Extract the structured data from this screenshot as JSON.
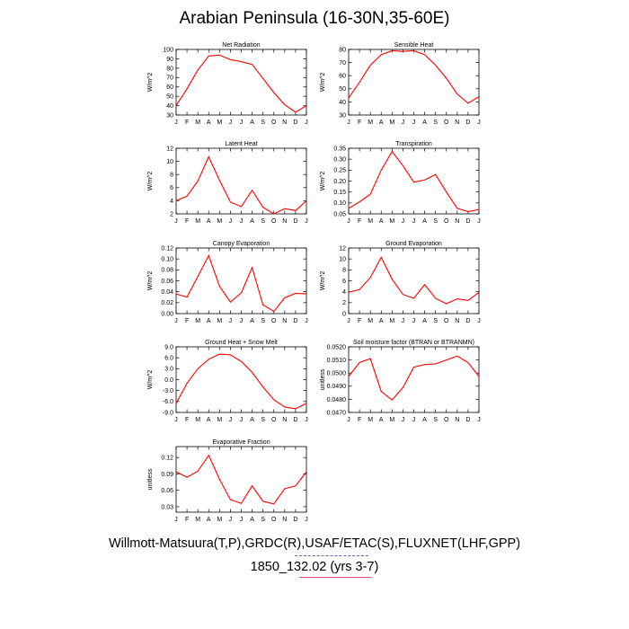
{
  "page": {
    "title": "Arabian Peninsula (16-30N,35-60E)",
    "footer_line_1": "Willmott-Matsuura(T,P),GRDC(R),USAF/ETAC(S),FLUXNET(LHF,GPP)",
    "footer_line_2": "1850_132.02 (yrs 3-7)",
    "accent_underline_blue": "#5a6ab4",
    "accent_underline_red": "#e05070"
  },
  "chart_data": [
    {
      "type": "line",
      "title": "Net Radiation",
      "ylabel": "W/m^2",
      "categories": [
        "J",
        "F",
        "M",
        "A",
        "M",
        "J",
        "J",
        "A",
        "S",
        "O",
        "N",
        "D",
        "J"
      ],
      "ylim": [
        30,
        100
      ],
      "yticks": [
        30,
        40,
        50,
        60,
        70,
        80,
        90,
        100
      ],
      "yticklabels": [
        "30",
        "40",
        "50",
        "60",
        "70",
        "80",
        "90",
        "100"
      ],
      "series": [
        {
          "color": "#ff0000",
          "values": [
            40,
            58,
            78,
            93,
            94,
            89,
            87,
            84,
            69,
            54,
            41,
            33,
            40
          ]
        }
      ]
    },
    {
      "type": "line",
      "title": "Sensible Heat",
      "ylabel": "W/m^2",
      "categories": [
        "J",
        "F",
        "M",
        "A",
        "M",
        "J",
        "J",
        "A",
        "S",
        "O",
        "N",
        "D",
        "J"
      ],
      "ylim": [
        30,
        80
      ],
      "yticks": [
        30,
        40,
        50,
        60,
        70,
        80
      ],
      "yticklabels": [
        "30",
        "40",
        "50",
        "60",
        "70",
        "80"
      ],
      "series": [
        {
          "color": "#ff0000",
          "values": [
            43,
            55,
            68,
            76,
            79,
            78.5,
            79,
            76,
            68,
            58,
            46,
            39,
            44
          ]
        }
      ]
    },
    {
      "type": "line",
      "title": "Latent Heat",
      "ylabel": "W/m^2",
      "categories": [
        "J",
        "F",
        "M",
        "A",
        "M",
        "J",
        "J",
        "A",
        "S",
        "O",
        "N",
        "D",
        "J"
      ],
      "ylim": [
        2,
        12
      ],
      "yticks": [
        2,
        4,
        6,
        8,
        10,
        12
      ],
      "yticklabels": [
        "2",
        "4",
        "6",
        "8",
        "10",
        "12"
      ],
      "series": [
        {
          "color": "#ff0000",
          "values": [
            4.0,
            4.7,
            7.0,
            10.7,
            7.1,
            3.8,
            3.1,
            5.6,
            3.0,
            2.0,
            2.8,
            2.5,
            4.0
          ]
        }
      ]
    },
    {
      "type": "line",
      "title": "Transpiration",
      "ylabel": "W/m^2",
      "categories": [
        "J",
        "F",
        "M",
        "A",
        "M",
        "J",
        "J",
        "A",
        "S",
        "O",
        "N",
        "D",
        "J"
      ],
      "ylim": [
        0.05,
        0.35
      ],
      "yticks": [
        0.05,
        0.1,
        0.15,
        0.2,
        0.25,
        0.3,
        0.35
      ],
      "yticklabels": [
        "0.05",
        "0.10",
        "0.15",
        "0.20",
        "0.25",
        "0.30",
        "0.35"
      ],
      "series": [
        {
          "color": "#ff0000",
          "values": [
            0.075,
            0.105,
            0.14,
            0.25,
            0.335,
            0.27,
            0.195,
            0.205,
            0.23,
            0.15,
            0.075,
            0.06,
            0.07
          ]
        }
      ]
    },
    {
      "type": "line",
      "title": "Canopy Evaporation",
      "ylabel": "W/m^2",
      "categories": [
        "J",
        "F",
        "M",
        "A",
        "M",
        "J",
        "J",
        "A",
        "S",
        "O",
        "N",
        "D",
        "J"
      ],
      "ylim": [
        0.0,
        0.12
      ],
      "yticks": [
        0.0,
        0.02,
        0.04,
        0.06,
        0.08,
        0.1,
        0.12
      ],
      "yticklabels": [
        "0.00",
        "0.02",
        "0.04",
        "0.06",
        "0.08",
        "0.10",
        "0.12"
      ],
      "series": [
        {
          "color": "#ff0000",
          "values": [
            0.036,
            0.03,
            0.068,
            0.106,
            0.05,
            0.021,
            0.038,
            0.084,
            0.016,
            0.004,
            0.029,
            0.037,
            0.036
          ]
        }
      ]
    },
    {
      "type": "line",
      "title": "Ground Evaporation",
      "ylabel": "W/m^2",
      "categories": [
        "J",
        "F",
        "M",
        "A",
        "M",
        "J",
        "J",
        "A",
        "S",
        "O",
        "N",
        "D",
        "J"
      ],
      "ylim": [
        0,
        12
      ],
      "yticks": [
        0,
        2,
        4,
        6,
        8,
        10,
        12
      ],
      "yticklabels": [
        "0",
        "2",
        "4",
        "6",
        "8",
        "10",
        "12"
      ],
      "series": [
        {
          "color": "#ff0000",
          "values": [
            3.9,
            4.4,
            6.6,
            10.3,
            6.3,
            3.5,
            2.8,
            5.3,
            2.8,
            1.8,
            2.7,
            2.4,
            3.9
          ]
        }
      ]
    },
    {
      "type": "line",
      "title": "Ground Heat + Snow Melt",
      "ylabel": "W/m^2",
      "categories": [
        "J",
        "F",
        "M",
        "A",
        "M",
        "J",
        "J",
        "A",
        "S",
        "O",
        "N",
        "D",
        "J"
      ],
      "ylim": [
        -9.0,
        9.0
      ],
      "yticks": [
        -9,
        -6,
        -3,
        0,
        3,
        6,
        9
      ],
      "yticklabels": [
        "-9.0",
        "-6.0",
        "-3.0",
        "0.0",
        "3.0",
        "6.0",
        "9.0"
      ],
      "series": [
        {
          "color": "#ff0000",
          "values": [
            -6.5,
            -1.0,
            3.0,
            5.6,
            7.0,
            6.8,
            5.0,
            2.0,
            -2.0,
            -5.5,
            -7.5,
            -8.0,
            -6.5
          ]
        }
      ]
    },
    {
      "type": "line",
      "title": "Soil moisture factor (BTRAN or BTRANMN)",
      "ylabel": "unitless",
      "categories": [
        "J",
        "F",
        "M",
        "A",
        "M",
        "J",
        "J",
        "A",
        "S",
        "O",
        "N",
        "D",
        "J"
      ],
      "ylim": [
        0.047,
        0.052
      ],
      "yticks": [
        0.047,
        0.048,
        0.049,
        0.05,
        0.051,
        0.052
      ],
      "yticklabels": [
        "0.0470",
        "0.0480",
        "0.0490",
        "0.0500",
        "0.0510",
        "0.0520"
      ],
      "series": [
        {
          "color": "#ff0000",
          "values": [
            0.04975,
            0.0508,
            0.0511,
            0.0486,
            0.04795,
            0.0489,
            0.05045,
            0.05065,
            0.0507,
            0.051,
            0.0513,
            0.0508,
            0.04975
          ]
        }
      ]
    },
    {
      "type": "line",
      "title": "Evaporative Fraction",
      "ylabel": "unitless",
      "categories": [
        "J",
        "F",
        "M",
        "A",
        "M",
        "J",
        "J",
        "A",
        "S",
        "O",
        "N",
        "D",
        "J"
      ],
      "ylim": [
        0.02,
        0.14
      ],
      "yticks": [
        0.03,
        0.06,
        0.09,
        0.12
      ],
      "yticklabels": [
        "0.03",
        "0.06",
        "0.09",
        "0.12"
      ],
      "series": [
        {
          "color": "#ff0000",
          "values": [
            0.094,
            0.084,
            0.095,
            0.124,
            0.08,
            0.043,
            0.036,
            0.068,
            0.04,
            0.035,
            0.063,
            0.068,
            0.094
          ]
        }
      ]
    }
  ]
}
